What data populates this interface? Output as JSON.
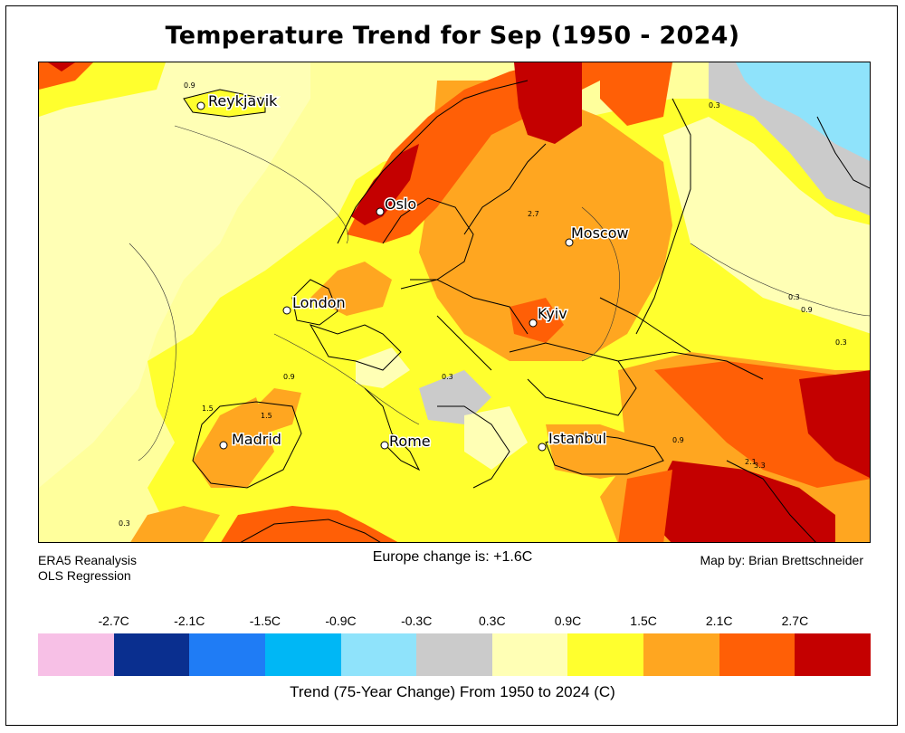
{
  "title": "Temperature Trend for Sep (1950 - 2024)",
  "map": {
    "region": "Europe",
    "cities": [
      {
        "name": "Reykjavik"
      },
      {
        "name": "Oslo"
      },
      {
        "name": "Moscow"
      },
      {
        "name": "London"
      },
      {
        "name": "Kyiv"
      },
      {
        "name": "Madrid"
      },
      {
        "name": "Rome"
      },
      {
        "name": "Istanbul"
      }
    ],
    "contour_levels_shown": [
      "0.3",
      "0.9",
      "1.5",
      "2.1",
      "2.7",
      "3.3"
    ]
  },
  "footer": {
    "source_line1": "ERA5 Reanalysis",
    "source_line2": "OLS Regression",
    "summary": "Europe change is: +1.6C",
    "credit": "Map by: Brian Brettschneider"
  },
  "legend": {
    "ticks": [
      "-2.7C",
      "-2.1C",
      "-1.5C",
      "-0.9C",
      "-0.3C",
      "0.3C",
      "0.9C",
      "1.5C",
      "2.1C",
      "2.7C"
    ],
    "colors": [
      "#f7c0e6",
      "#0a2f8f",
      "#1f7cf5",
      "#00b7f5",
      "#8fe3fb",
      "#cbcbcb",
      "#ffffb5",
      "#ffff2e",
      "#ffa620",
      "#ff5f06",
      "#c40000"
    ],
    "label": "Trend (75-Year Change) From 1950 to 2024 (C)"
  },
  "colors": {
    "ocean_trend": "#ffff9c",
    "land_trend_low": "#ffff2e",
    "land_trend_mid": "#ffa620",
    "land_trend_high": "#ff5f06",
    "land_trend_max": "#c40000",
    "neutral": "#cbcbcb",
    "cold": "#8fe3fb"
  }
}
